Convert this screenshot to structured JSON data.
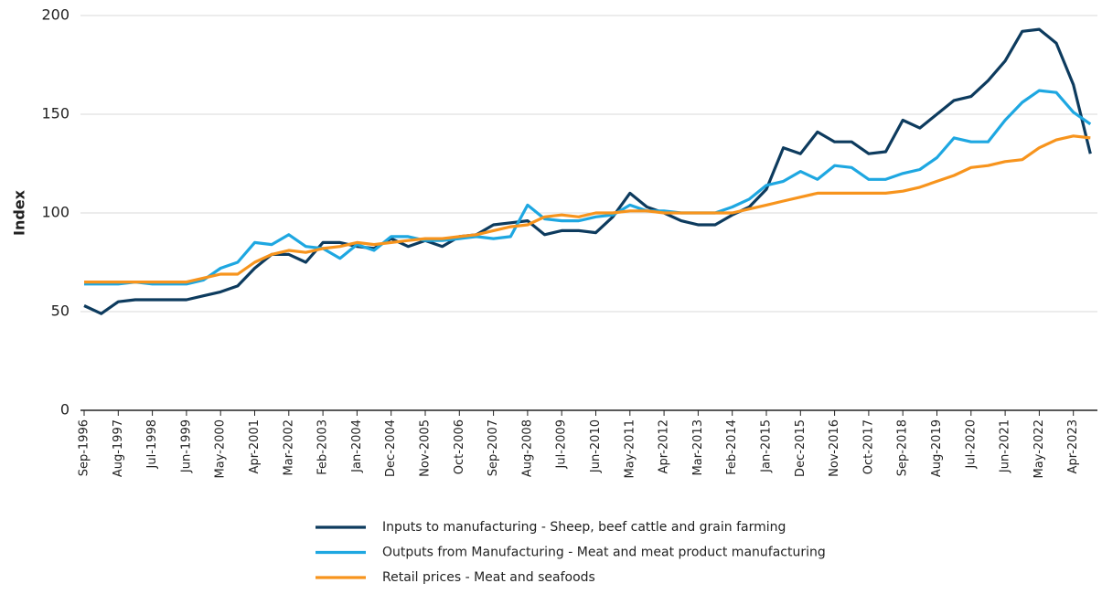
{
  "chart_data": {
    "type": "line",
    "y_label": "Index",
    "categories": [
      "Sep-1996",
      null,
      "Aug-1997",
      null,
      "Jul-1998",
      null,
      "Jun-1999",
      null,
      "May-2000",
      null,
      "Apr-2001",
      null,
      "Mar-2002",
      null,
      "Feb-2003",
      null,
      "Jan-2004",
      null,
      "Dec-2004",
      null,
      "Nov-2005",
      null,
      "Oct-2006",
      null,
      "Sep-2007",
      null,
      "Aug-2008",
      null,
      "Jul-2009",
      null,
      "Jun-2010",
      null,
      "May-2011",
      null,
      "Apr-2012",
      null,
      "Mar-2013",
      null,
      "Feb-2014",
      null,
      "Jan-2015",
      null,
      "Dec-2015",
      null,
      "Nov-2016",
      null,
      "Oct-2017",
      null,
      "Sep-2018",
      null,
      "Aug-2019",
      null,
      "Jul-2020",
      null,
      "Jun-2021",
      null,
      "May-2022",
      null,
      "Apr-2023",
      null
    ],
    "series": [
      {
        "name": "Inputs to manufacturing - Sheep, beef cattle and grain farming",
        "color": "#0d3b5e",
        "values": [
          53,
          49,
          55,
          56,
          56,
          56,
          56,
          58,
          60,
          63,
          72,
          79,
          79,
          75,
          85,
          85,
          83,
          82,
          87,
          83,
          86,
          83,
          88,
          89,
          94,
          95,
          96,
          89,
          91,
          91,
          90,
          98,
          110,
          103,
          100,
          96,
          94,
          94,
          99,
          103,
          112,
          133,
          130,
          141,
          136,
          136,
          130,
          131,
          147,
          143,
          150,
          157,
          159,
          167,
          177,
          192,
          193,
          186,
          165,
          130
        ]
      },
      {
        "name": "Outputs from Manufacturing - Meat and meat product manufacturing",
        "color": "#1ea7e1",
        "values": [
          64,
          64,
          64,
          65,
          64,
          64,
          64,
          66,
          72,
          75,
          85,
          84,
          89,
          83,
          82,
          77,
          84,
          81,
          88,
          88,
          86,
          86,
          87,
          88,
          87,
          88,
          104,
          97,
          96,
          96,
          98,
          99,
          104,
          101,
          101,
          100,
          100,
          100,
          103,
          107,
          114,
          116,
          121,
          117,
          124,
          123,
          117,
          117,
          120,
          122,
          128,
          138,
          136,
          136,
          147,
          156,
          162,
          161,
          151,
          145
        ]
      },
      {
        "name": "Retail prices - Meat and seafoods",
        "color": "#f7941d",
        "values": [
          65,
          65,
          65,
          65,
          65,
          65,
          65,
          67,
          69,
          69,
          75,
          79,
          81,
          80,
          82,
          83,
          85,
          84,
          85,
          86,
          87,
          87,
          88,
          89,
          91,
          93,
          94,
          98,
          99,
          98,
          100,
          100,
          101,
          101,
          100,
          100,
          100,
          100,
          100,
          102,
          104,
          106,
          108,
          110,
          110,
          110,
          110,
          110,
          111,
          113,
          116,
          119,
          123,
          124,
          126,
          127,
          133,
          137,
          139,
          138
        ]
      }
    ],
    "ylim": [
      0,
      200
    ],
    "yticks": [
      0,
      50,
      100,
      150,
      200
    ],
    "grid": true
  }
}
